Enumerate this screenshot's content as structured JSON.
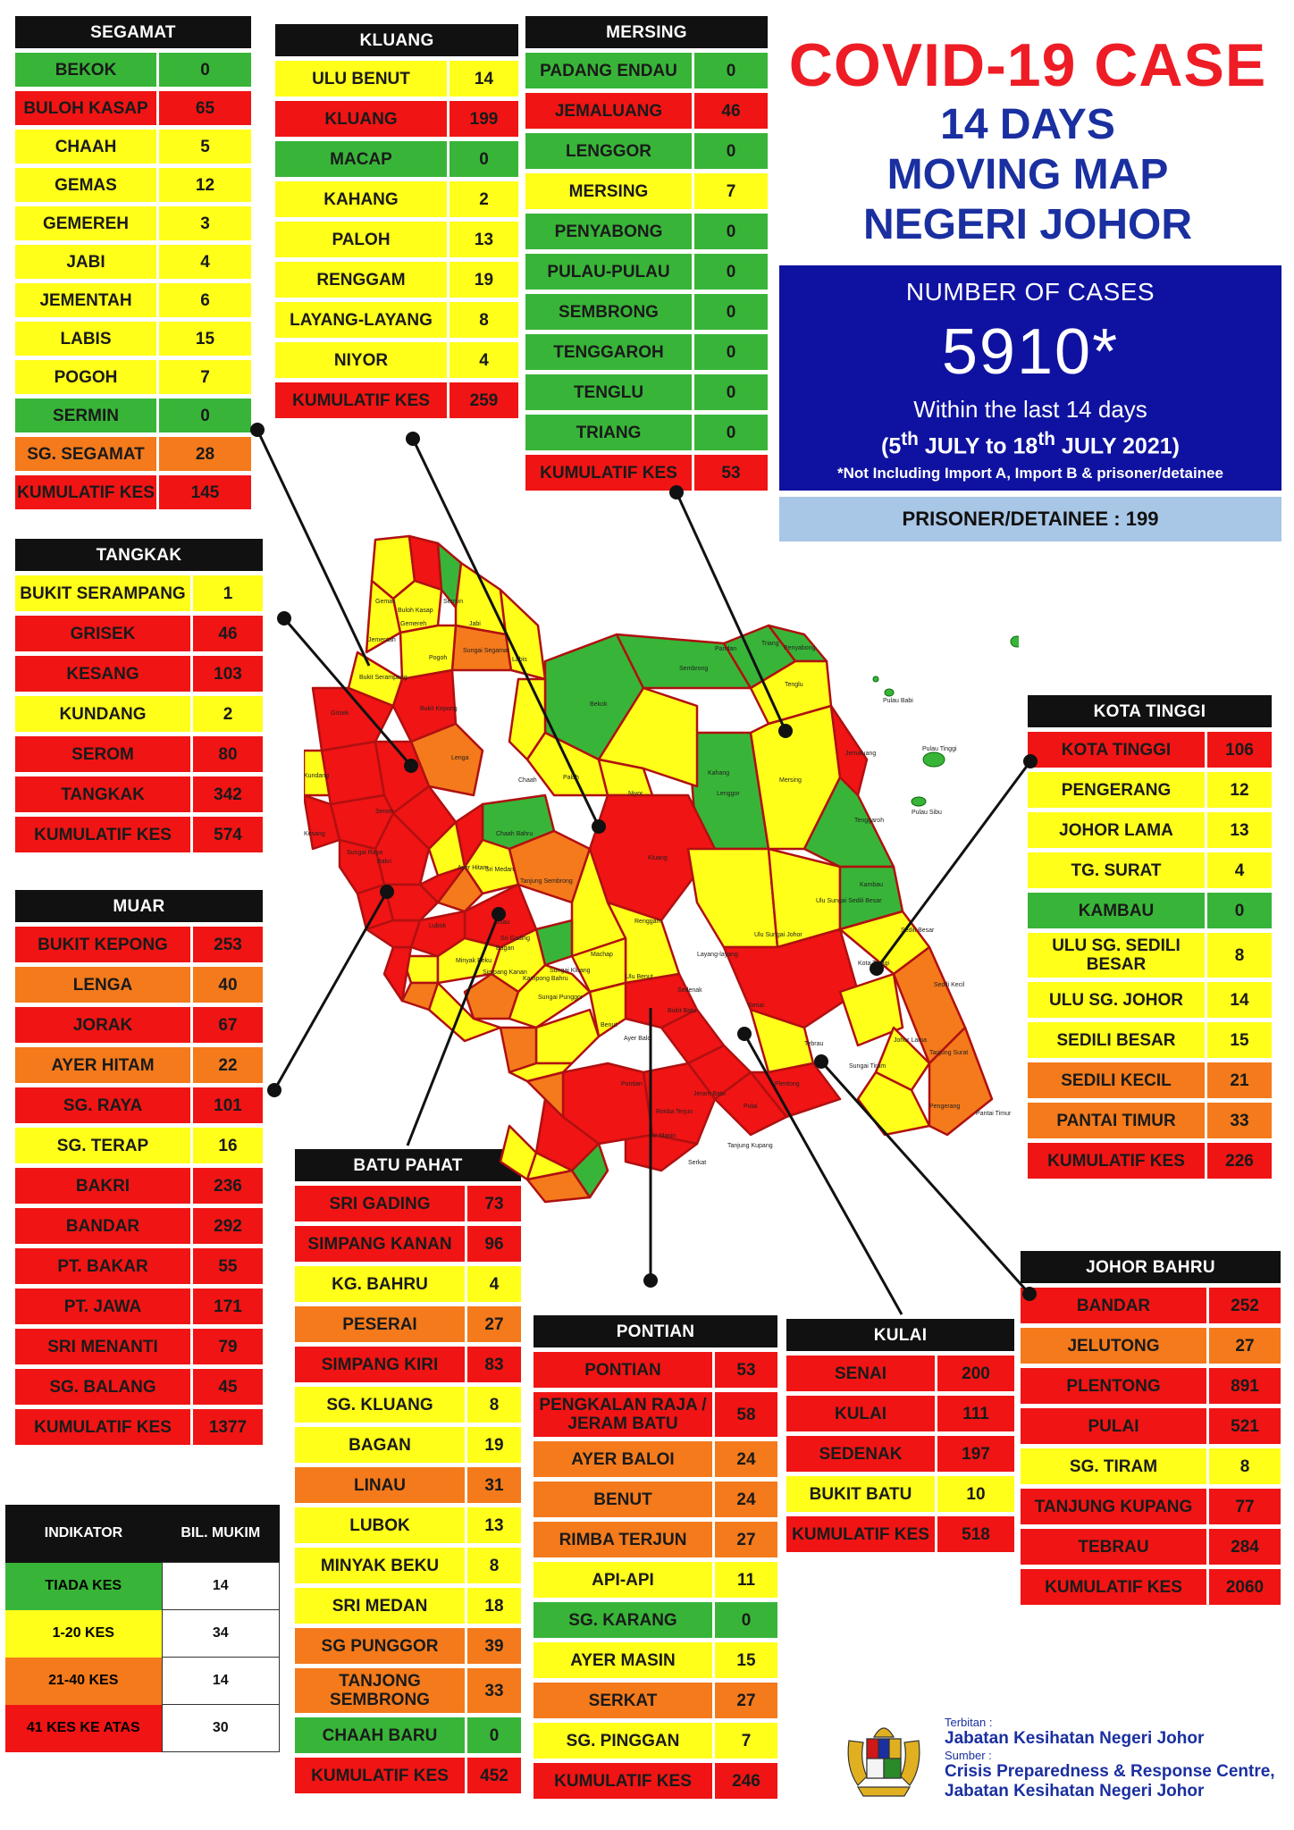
{
  "title": {
    "line1": "COVID-19 CASE",
    "line2": "14 DAYS",
    "line3": "MOVING MAP",
    "line4": "NEGERI JOHOR"
  },
  "summary": {
    "label": "NUMBER OF CASES",
    "total": "5910*",
    "within_prefix": "Within the last 14",
    "within_suffix": "days",
    "date_start": "5",
    "date_start_sup": "th",
    "date_mid": " JULY to 18",
    "date_end_sup": "th",
    "date_end": " JULY 2021)",
    "date_open": "(",
    "note": "*Not Including Import A, Import B & prisoner/detainee",
    "prisoner": "PRISONER/DETAINEE : 199"
  },
  "colors": {
    "green": "#38b538",
    "yellow": "#ffff1a",
    "orange": "#f47a1c",
    "red": "#f01414",
    "title_red": "#ee1c24",
    "navy": "#1a2fa0",
    "box_blue": "#0f12a0"
  },
  "districts": {
    "segamat": {
      "name": "SEGAMAT",
      "rows": [
        {
          "n": "BEKOK",
          "v": "0",
          "c": "g"
        },
        {
          "n": "BULOH KASAP",
          "v": "65",
          "c": "r"
        },
        {
          "n": "CHAAH",
          "v": "5",
          "c": "y"
        },
        {
          "n": "GEMAS",
          "v": "12",
          "c": "y"
        },
        {
          "n": "GEMEREH",
          "v": "3",
          "c": "y"
        },
        {
          "n": "JABI",
          "v": "4",
          "c": "y"
        },
        {
          "n": "JEMENTAH",
          "v": "6",
          "c": "y"
        },
        {
          "n": "LABIS",
          "v": "15",
          "c": "y"
        },
        {
          "n": "POGOH",
          "v": "7",
          "c": "y"
        },
        {
          "n": "SERMIN",
          "v": "0",
          "c": "g"
        },
        {
          "n": "SG. SEGAMAT",
          "v": "28",
          "c": "o"
        },
        {
          "n": "KUMULATIF KES",
          "v": "145",
          "c": "r"
        }
      ]
    },
    "kluang": {
      "name": "KLUANG",
      "rows": [
        {
          "n": "ULU BENUT",
          "v": "14",
          "c": "y"
        },
        {
          "n": "KLUANG",
          "v": "199",
          "c": "r"
        },
        {
          "n": "MACAP",
          "v": "0",
          "c": "g"
        },
        {
          "n": "KAHANG",
          "v": "2",
          "c": "y"
        },
        {
          "n": "PALOH",
          "v": "13",
          "c": "y"
        },
        {
          "n": "RENGGAM",
          "v": "19",
          "c": "y"
        },
        {
          "n": "LAYANG-LAYANG",
          "v": "8",
          "c": "y"
        },
        {
          "n": "NIYOR",
          "v": "4",
          "c": "y"
        },
        {
          "n": "KUMULATIF KES",
          "v": "259",
          "c": "r"
        }
      ]
    },
    "mersing": {
      "name": "MERSING",
      "rows": [
        {
          "n": "PADANG ENDAU",
          "v": "0",
          "c": "g"
        },
        {
          "n": "JEMALUANG",
          "v": "46",
          "c": "r"
        },
        {
          "n": "LENGGOR",
          "v": "0",
          "c": "g"
        },
        {
          "n": "MERSING",
          "v": "7",
          "c": "y"
        },
        {
          "n": "PENYABONG",
          "v": "0",
          "c": "g"
        },
        {
          "n": "PULAU-PULAU",
          "v": "0",
          "c": "g"
        },
        {
          "n": "SEMBRONG",
          "v": "0",
          "c": "g"
        },
        {
          "n": "TENGGAROH",
          "v": "0",
          "c": "g"
        },
        {
          "n": "TENGLU",
          "v": "0",
          "c": "g"
        },
        {
          "n": "TRIANG",
          "v": "0",
          "c": "g"
        },
        {
          "n": "KUMULATIF KES",
          "v": "53",
          "c": "r"
        }
      ]
    },
    "tangkak": {
      "name": "TANGKAK",
      "rows": [
        {
          "n": "BUKIT SERAMPANG",
          "v": "1",
          "c": "y"
        },
        {
          "n": "GRISEK",
          "v": "46",
          "c": "r"
        },
        {
          "n": "KESANG",
          "v": "103",
          "c": "r"
        },
        {
          "n": "KUNDANG",
          "v": "2",
          "c": "y"
        },
        {
          "n": "SEROM",
          "v": "80",
          "c": "r"
        },
        {
          "n": "TANGKAK",
          "v": "342",
          "c": "r"
        },
        {
          "n": "KUMULATIF KES",
          "v": "574",
          "c": "r"
        }
      ]
    },
    "muar": {
      "name": "MUAR",
      "rows": [
        {
          "n": "BUKIT KEPONG",
          "v": "253",
          "c": "r"
        },
        {
          "n": "LENGA",
          "v": "40",
          "c": "o"
        },
        {
          "n": "JORAK",
          "v": "67",
          "c": "r"
        },
        {
          "n": "AYER HITAM",
          "v": "22",
          "c": "o"
        },
        {
          "n": "SG. RAYA",
          "v": "101",
          "c": "r"
        },
        {
          "n": "SG. TERAP",
          "v": "16",
          "c": "y"
        },
        {
          "n": "BAKRI",
          "v": "236",
          "c": "r"
        },
        {
          "n": "BANDAR",
          "v": "292",
          "c": "r"
        },
        {
          "n": "PT. BAKAR",
          "v": "55",
          "c": "r"
        },
        {
          "n": "PT. JAWA",
          "v": "171",
          "c": "r"
        },
        {
          "n": "SRI MENANTI",
          "v": "79",
          "c": "r"
        },
        {
          "n": "SG. BALANG",
          "v": "45",
          "c": "r"
        },
        {
          "n": "KUMULATIF KES",
          "v": "1377",
          "c": "r"
        }
      ]
    },
    "batu_pahat": {
      "name": "BATU PAHAT",
      "rows": [
        {
          "n": "SRI GADING",
          "v": "73",
          "c": "r"
        },
        {
          "n": "SIMPANG KANAN",
          "v": "96",
          "c": "r"
        },
        {
          "n": "KG. BAHRU",
          "v": "4",
          "c": "y"
        },
        {
          "n": "PESERAI",
          "v": "27",
          "c": "o"
        },
        {
          "n": "SIMPANG KIRI",
          "v": "83",
          "c": "r"
        },
        {
          "n": "SG. KLUANG",
          "v": "8",
          "c": "y"
        },
        {
          "n": "BAGAN",
          "v": "19",
          "c": "y"
        },
        {
          "n": "LINAU",
          "v": "31",
          "c": "o"
        },
        {
          "n": "LUBOK",
          "v": "13",
          "c": "y"
        },
        {
          "n": "MINYAK BEKU",
          "v": "8",
          "c": "y"
        },
        {
          "n": "SRI MEDAN",
          "v": "18",
          "c": "y"
        },
        {
          "n": "SG PUNGGOR",
          "v": "39",
          "c": "o"
        },
        {
          "n": "TANJONG SEMBRONG",
          "v": "33",
          "c": "o"
        },
        {
          "n": "CHAAH BARU",
          "v": "0",
          "c": "g"
        },
        {
          "n": "KUMULATIF KES",
          "v": "452",
          "c": "r"
        }
      ]
    },
    "pontian": {
      "name": "PONTIAN",
      "rows": [
        {
          "n": "PONTIAN",
          "v": "53",
          "c": "r"
        },
        {
          "n": "PENGKALAN RAJA / JERAM BATU",
          "v": "58",
          "c": "r"
        },
        {
          "n": "AYER BALOI",
          "v": "24",
          "c": "o"
        },
        {
          "n": "BENUT",
          "v": "24",
          "c": "o"
        },
        {
          "n": "RIMBA TERJUN",
          "v": "27",
          "c": "o"
        },
        {
          "n": "API-API",
          "v": "11",
          "c": "y"
        },
        {
          "n": "SG. KARANG",
          "v": "0",
          "c": "g"
        },
        {
          "n": "AYER MASIN",
          "v": "15",
          "c": "y"
        },
        {
          "n": "SERKAT",
          "v": "27",
          "c": "o"
        },
        {
          "n": "SG. PINGGAN",
          "v": "7",
          "c": "y"
        },
        {
          "n": "KUMULATIF KES",
          "v": "246",
          "c": "r"
        }
      ]
    },
    "kulai": {
      "name": "KULAI",
      "rows": [
        {
          "n": "SENAI",
          "v": "200",
          "c": "r"
        },
        {
          "n": "KULAI",
          "v": "111",
          "c": "r"
        },
        {
          "n": "SEDENAK",
          "v": "197",
          "c": "r"
        },
        {
          "n": "BUKIT BATU",
          "v": "10",
          "c": "y"
        },
        {
          "n": "KUMULATIF KES",
          "v": "518",
          "c": "r"
        }
      ]
    },
    "kota_tinggi": {
      "name": "KOTA TINGGI",
      "rows": [
        {
          "n": "KOTA TINGGI",
          "v": "106",
          "c": "r"
        },
        {
          "n": "PENGERANG",
          "v": "12",
          "c": "y"
        },
        {
          "n": "JOHOR LAMA",
          "v": "13",
          "c": "y"
        },
        {
          "n": "TG. SURAT",
          "v": "4",
          "c": "y"
        },
        {
          "n": "KAMBAU",
          "v": "0",
          "c": "g"
        },
        {
          "n": "ULU SG. SEDILI BESAR",
          "v": "8",
          "c": "y"
        },
        {
          "n": "ULU  SG. JOHOR",
          "v": "14",
          "c": "y"
        },
        {
          "n": "SEDILI BESAR",
          "v": "15",
          "c": "y"
        },
        {
          "n": "SEDILI KECIL",
          "v": "21",
          "c": "o"
        },
        {
          "n": "PANTAI TIMUR",
          "v": "33",
          "c": "o"
        },
        {
          "n": "KUMULATIF KES",
          "v": "226",
          "c": "r"
        }
      ]
    },
    "johor_bahru": {
      "name": "JOHOR BAHRU",
      "rows": [
        {
          "n": "BANDAR",
          "v": "252",
          "c": "r"
        },
        {
          "n": "JELUTONG",
          "v": "27",
          "c": "o"
        },
        {
          "n": "PLENTONG",
          "v": "891",
          "c": "r"
        },
        {
          "n": "PULAI",
          "v": "521",
          "c": "r"
        },
        {
          "n": "SG. TIRAM",
          "v": "8",
          "c": "y"
        },
        {
          "n": "TANJUNG KUPANG",
          "v": "77",
          "c": "r"
        },
        {
          "n": "TEBRAU",
          "v": "284",
          "c": "r"
        },
        {
          "n": "KUMULATIF KES",
          "v": "2060",
          "c": "r"
        }
      ]
    }
  },
  "legend": {
    "header_indicator": "INDIKATOR",
    "header_count": "BIL. MUKIM",
    "rows": [
      {
        "label": "TIADA KES",
        "count": "14",
        "c": "g"
      },
      {
        "label": "1-20 KES",
        "count": "34",
        "c": "y"
      },
      {
        "label": "21-40 KES",
        "count": "14",
        "c": "o"
      },
      {
        "label": "41 KES KE ATAS",
        "count": "30",
        "c": "r"
      }
    ]
  },
  "footer": {
    "published_label": "Terbitan :",
    "publisher": "Jabatan Kesihatan Negeri Johor",
    "source_label": "Sumber :",
    "source_line1": "Crisis Preparedness & Response Centre,",
    "source_line2": "Jabatan Kesihatan Negeri Johor",
    "crest_icon": "malaysia-coat-of-arms-icon"
  },
  "map_labels": {
    "gemas": "Gemas",
    "buloh_kasap": "Buloh Kasap",
    "sermin": "Sermin",
    "gemereh": "Gemereh",
    "jabi": "Jabi",
    "jementah": "Jementah",
    "sungai_segamat": "Sungai Segamat",
    "pogoh": "Pogoh",
    "labis": "Labis",
    "bekok": "Bekok",
    "sembrong": "Sembrong",
    "pandan": "Pandan",
    "triang": "Triang",
    "penyabong": "Penyabong",
    "tenglu": "Tenglu",
    "pulau_babi": "Pulau Babi",
    "pulau_tinggi": "Pulau Tinggi",
    "pulau_sibu": "Pulau Sibu",
    "bukit_serampang": "Bukit Serampang",
    "grisek": "Grisek",
    "bukit_kepong": "Bukit Kepong",
    "kundang": "Kundang",
    "kesang": "Kesang",
    "lenga": "Lenga",
    "chaah": "Chaah",
    "paloh": "Paloh",
    "kahang": "Kahang",
    "niyor": "Niyor",
    "lenggor": "Lenggor",
    "mersing": "Mersing",
    "jemaluang": "Jemaluang",
    "tenggaroh": "Tenggaroh",
    "chaah_bahru": "Chaah Bahru",
    "ayer_hitam": "Ayer Hitam",
    "sri_medan": "Sri Medan",
    "tanjung_sembrong": "Tanjung Sembrong",
    "kluang": "Kluang",
    "kambau": "Kambau",
    "ulu_sg_sedili_besar": "Ulu Sungai Sedili Besar",
    "ulu_sungai_johor": "Ulu Sungai Johor",
    "sedili_besar": "Sedili Besar",
    "linau": "Linau",
    "renggam": "Renggam",
    "layang_layang": "Layang-layang",
    "machap": "Machap",
    "ulu_benut": "Ulu Benut",
    "kota_tinggi": "Kota Tinggi",
    "sedili_kecil": "Sedili Kecil",
    "johor_lama": "Johor Lama",
    "tanjung_surat": "Tanjung Surat",
    "sungai_tiram": "Sungai Tiram",
    "pengerang": "Pengerang",
    "pantai_timur": "Pantai Timur",
    "jeram_batu": "Jeram Batu",
    "rimba_terjun": "Rimba Terjun",
    "air_masin": "Air Masin",
    "serkat": "Serkat",
    "tanjung_kupang": "Tanjung Kupang",
    "senai": "Senai",
    "bukit_batu": "Bukit Batu",
    "sedenak": "Sedenak",
    "pontian": "Pontian",
    "benut": "Benut",
    "ayer_baloi": "Ayer Baloi",
    "sungai_punggor": "Sungai Punggor",
    "kampong_bahru": "Kampong Bahru",
    "sungai_kluang": "Sungai Kluang",
    "bagan": "Bagan",
    "lubok": "Lubok",
    "bakri": "Bakri",
    "sungai_raya": "Sungai Raya",
    "serom": "Serom",
    "minyak_beku": "Minyak Beku",
    "simpang_kanan": "Simpang Kanan",
    "sri_gading": "Sri Gading",
    "tebrau": "Tebrau",
    "plentong": "Plentong",
    "pulai": "Pulai"
  }
}
